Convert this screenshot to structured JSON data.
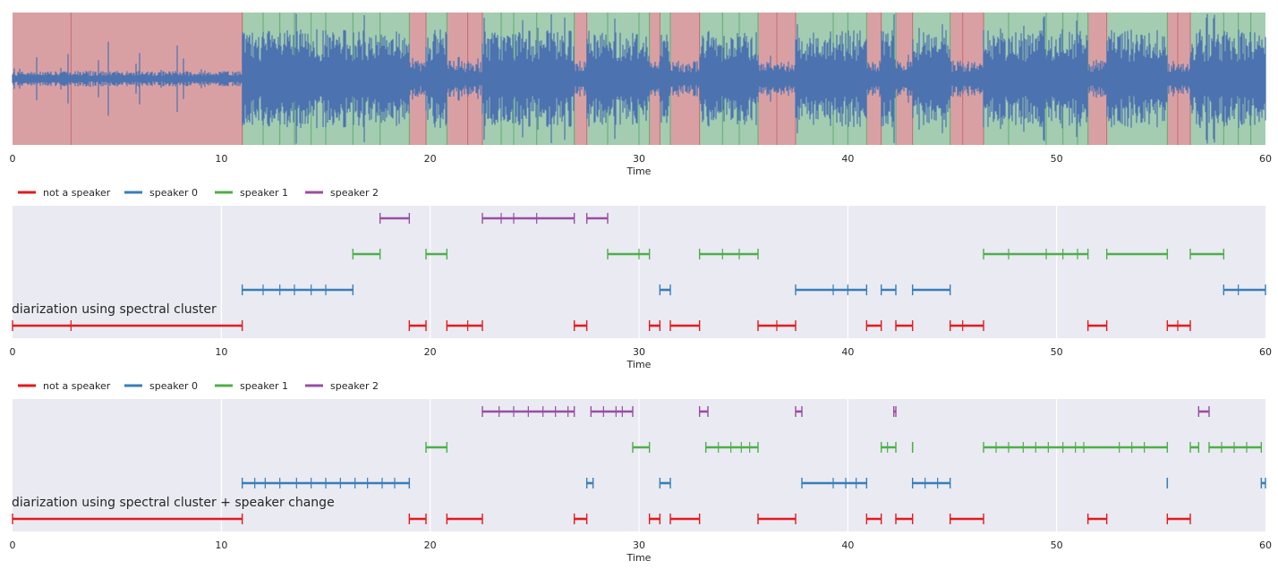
{
  "chart_data": [
    {
      "type": "area",
      "title": "",
      "xlabel": "Time",
      "xlim": [
        0,
        60
      ],
      "xticks": [
        "0",
        "10",
        "20",
        "30",
        "40",
        "50",
        "60"
      ],
      "waveform_color": "#4c72b0",
      "region_colors": {
        "not_speaker": "#d9a0a4",
        "speaker": "#a3ccb1"
      },
      "regions": [
        {
          "start": 0.0,
          "end": 11.0,
          "kind": "not_speaker"
        },
        {
          "start": 11.0,
          "end": 19.0,
          "kind": "speaker"
        },
        {
          "start": 19.0,
          "end": 19.8,
          "kind": "not_speaker"
        },
        {
          "start": 19.8,
          "end": 20.8,
          "kind": "speaker"
        },
        {
          "start": 20.8,
          "end": 22.5,
          "kind": "not_speaker"
        },
        {
          "start": 22.5,
          "end": 26.9,
          "kind": "speaker"
        },
        {
          "start": 26.9,
          "end": 27.5,
          "kind": "not_speaker"
        },
        {
          "start": 27.5,
          "end": 30.5,
          "kind": "speaker"
        },
        {
          "start": 30.5,
          "end": 31.0,
          "kind": "not_speaker"
        },
        {
          "start": 31.0,
          "end": 31.5,
          "kind": "speaker"
        },
        {
          "start": 31.5,
          "end": 32.9,
          "kind": "not_speaker"
        },
        {
          "start": 32.9,
          "end": 35.7,
          "kind": "speaker"
        },
        {
          "start": 35.7,
          "end": 37.5,
          "kind": "not_speaker"
        },
        {
          "start": 37.5,
          "end": 40.9,
          "kind": "speaker"
        },
        {
          "start": 40.9,
          "end": 41.6,
          "kind": "not_speaker"
        },
        {
          "start": 41.6,
          "end": 42.3,
          "kind": "speaker"
        },
        {
          "start": 42.3,
          "end": 43.1,
          "kind": "not_speaker"
        },
        {
          "start": 43.1,
          "end": 44.9,
          "kind": "speaker"
        },
        {
          "start": 44.9,
          "end": 46.5,
          "kind": "not_speaker"
        },
        {
          "start": 46.5,
          "end": 51.5,
          "kind": "speaker"
        },
        {
          "start": 51.5,
          "end": 52.4,
          "kind": "not_speaker"
        },
        {
          "start": 52.4,
          "end": 55.3,
          "kind": "speaker"
        },
        {
          "start": 55.3,
          "end": 56.4,
          "kind": "not_speaker"
        },
        {
          "start": 56.4,
          "end": 60.0,
          "kind": "speaker"
        }
      ],
      "segment_boundaries": [
        2.8,
        11.0,
        12.0,
        12.8,
        13.5,
        14.3,
        15.0,
        16.3,
        17.6,
        19.0,
        19.8,
        20.8,
        21.8,
        22.5,
        23.4,
        24.0,
        25.1,
        26.9,
        27.5,
        28.5,
        30.0,
        30.5,
        31.0,
        31.5,
        32.9,
        34.0,
        34.8,
        35.7,
        36.6,
        37.5,
        39.3,
        40.0,
        40.9,
        41.6,
        42.3,
        43.1,
        44.9,
        45.5,
        46.5,
        47.7,
        49.5,
        50.3,
        51.0,
        51.5,
        52.4,
        55.3,
        55.8,
        56.4,
        58.0,
        58.7,
        59.3
      ]
    },
    {
      "type": "scatter",
      "title": "diarization using spectral cluster",
      "xlabel": "Time",
      "xlim": [
        0,
        60
      ],
      "xticks": [
        "0",
        "10",
        "20",
        "30",
        "40",
        "50",
        "60"
      ],
      "grid": true,
      "legend": [
        {
          "label": "not a speaker",
          "color": "#e41a1c"
        },
        {
          "label": "speaker 0",
          "color": "#377eb8"
        },
        {
          "label": "speaker 1",
          "color": "#4daf4a"
        },
        {
          "label": "speaker 2",
          "color": "#984ea3"
        }
      ],
      "series": [
        {
          "level": 0,
          "color": "#e41a1c",
          "segments": [
            [
              0.0,
              11.0,
              [
                2.8
              ]
            ],
            [
              19.0,
              19.8,
              []
            ],
            [
              20.8,
              22.5,
              [
                21.8
              ]
            ],
            [
              26.9,
              27.5,
              []
            ],
            [
              30.5,
              31.0,
              []
            ],
            [
              31.5,
              32.9,
              []
            ],
            [
              35.7,
              37.5,
              [
                36.6
              ]
            ],
            [
              40.9,
              41.6,
              []
            ],
            [
              42.3,
              43.1,
              []
            ],
            [
              44.9,
              46.5,
              [
                45.5
              ]
            ],
            [
              51.5,
              52.4,
              []
            ],
            [
              55.3,
              56.4,
              [
                55.8
              ]
            ]
          ]
        },
        {
          "level": 1,
          "color": "#377eb8",
          "segments": [
            [
              11.0,
              16.3,
              [
                12.0,
                12.8,
                13.5,
                14.3,
                15.0
              ]
            ],
            [
              31.0,
              31.5,
              []
            ],
            [
              37.5,
              40.9,
              [
                39.3,
                40.0
              ]
            ],
            [
              41.6,
              42.3,
              []
            ],
            [
              43.1,
              44.9,
              []
            ],
            [
              58.0,
              60.0,
              [
                58.7
              ]
            ]
          ]
        },
        {
          "level": 2,
          "color": "#4daf4a",
          "segments": [
            [
              16.3,
              17.6,
              []
            ],
            [
              19.8,
              20.8,
              []
            ],
            [
              28.5,
              30.5,
              [
                30.0
              ]
            ],
            [
              32.9,
              35.7,
              [
                34.0,
                34.8
              ]
            ],
            [
              46.5,
              51.5,
              [
                47.7,
                49.5,
                50.3,
                51.0
              ]
            ],
            [
              52.4,
              55.3,
              []
            ],
            [
              56.4,
              58.0,
              []
            ]
          ]
        },
        {
          "level": 3,
          "color": "#984ea3",
          "segments": [
            [
              17.6,
              19.0,
              []
            ],
            [
              22.5,
              26.9,
              [
                23.4,
                24.0,
                25.1
              ]
            ],
            [
              27.5,
              28.5,
              []
            ]
          ]
        }
      ]
    },
    {
      "type": "scatter",
      "title": "diarization using spectral cluster + speaker change",
      "xlabel": "Time",
      "xlim": [
        0,
        60
      ],
      "xticks": [
        "0",
        "10",
        "20",
        "30",
        "40",
        "50",
        "60"
      ],
      "grid": true,
      "legend": [
        {
          "label": "not a speaker",
          "color": "#e41a1c"
        },
        {
          "label": "speaker 0",
          "color": "#377eb8"
        },
        {
          "label": "speaker 1",
          "color": "#4daf4a"
        },
        {
          "label": "speaker 2",
          "color": "#984ea3"
        }
      ],
      "series": [
        {
          "level": 0,
          "color": "#e41a1c",
          "segments": [
            [
              0.0,
              11.0,
              []
            ],
            [
              19.0,
              19.8,
              []
            ],
            [
              20.8,
              22.5,
              []
            ],
            [
              26.9,
              27.5,
              []
            ],
            [
              30.5,
              31.0,
              []
            ],
            [
              31.5,
              32.9,
              []
            ],
            [
              35.7,
              37.5,
              []
            ],
            [
              40.9,
              41.6,
              []
            ],
            [
              42.3,
              43.1,
              []
            ],
            [
              44.9,
              46.5,
              []
            ],
            [
              51.5,
              52.4,
              []
            ],
            [
              55.3,
              56.4,
              []
            ]
          ]
        },
        {
          "level": 1,
          "color": "#377eb8",
          "segments": [
            [
              11.0,
              19.0,
              [
                11.6,
                12.1,
                12.8,
                13.6,
                14.3,
                15.0,
                15.7,
                16.4,
                17.0,
                17.7,
                18.3
              ]
            ],
            [
              27.5,
              27.8,
              []
            ],
            [
              31.0,
              31.5,
              []
            ],
            [
              37.8,
              40.9,
              [
                39.3,
                39.9,
                40.4
              ]
            ],
            [
              43.1,
              44.9,
              [
                43.7,
                44.3
              ]
            ],
            [
              55.3,
              55.3,
              []
            ],
            [
              59.8,
              60.0,
              []
            ]
          ]
        },
        {
          "level": 2,
          "color": "#4daf4a",
          "segments": [
            [
              19.8,
              20.8,
              []
            ],
            [
              29.7,
              30.5,
              []
            ],
            [
              33.2,
              35.7,
              [
                33.8,
                34.4,
                34.9,
                35.3
              ]
            ],
            [
              41.6,
              42.3,
              [
                41.9
              ]
            ],
            [
              43.1,
              43.1,
              []
            ],
            [
              46.5,
              55.3,
              [
                47.1,
                47.7,
                48.4,
                49.0,
                49.6,
                50.3,
                50.9,
                51.3,
                53.0,
                53.6,
                54.2
              ]
            ],
            [
              56.4,
              56.8,
              []
            ],
            [
              57.3,
              59.8,
              [
                57.9,
                58.5,
                59.1
              ]
            ]
          ]
        },
        {
          "level": 3,
          "color": "#984ea3",
          "segments": [
            [
              22.5,
              26.9,
              [
                23.3,
                24.0,
                24.7,
                25.4,
                26.0,
                26.6
              ]
            ],
            [
              27.7,
              29.7,
              [
                28.3,
                28.9,
                29.2
              ]
            ],
            [
              32.9,
              33.3,
              []
            ],
            [
              37.5,
              37.8,
              []
            ],
            [
              42.2,
              42.3,
              []
            ],
            [
              56.8,
              57.3,
              []
            ]
          ]
        }
      ]
    }
  ]
}
